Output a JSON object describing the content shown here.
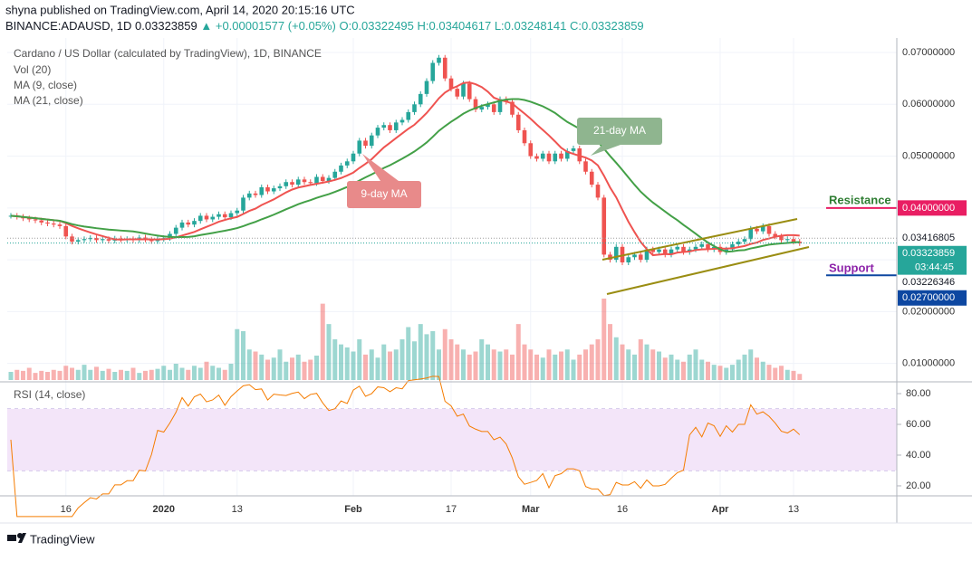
{
  "header": {
    "publisher": "shyna published on TradingView.com, April 14, 2020 20:15:16 UTC",
    "symbol": "BINANCE:ADAUSD, 1D",
    "last": "0.03323859",
    "change": "+0.00001577 (+0.05%)",
    "open": "O:0.03322495",
    "high": "H:0.03404617",
    "low": "L:0.03248141",
    "close": "C:0.03323859"
  },
  "footer": {
    "brand": "TradingView"
  },
  "chart_data": {
    "type": "candlestick",
    "title": "Cardano / US Dollar (calculated by TradingView), 1D, BINANCE",
    "categories": [
      null,
      null,
      null,
      null,
      null,
      null,
      null,
      null,
      null,
      "16",
      null,
      null,
      null,
      null,
      null,
      null,
      null,
      null,
      null,
      null,
      null,
      null,
      null,
      null,
      null,
      "2020",
      null,
      null,
      null,
      null,
      null,
      null,
      null,
      null,
      null,
      null,
      null,
      "13",
      null,
      null,
      null,
      null,
      null,
      null,
      null,
      null,
      null,
      null,
      null,
      null,
      null,
      null,
      null,
      null,
      null,
      null,
      "Feb",
      null,
      null,
      null,
      null,
      null,
      null,
      null,
      null,
      null,
      null,
      null,
      null,
      null,
      null,
      null,
      "17",
      null,
      null,
      null,
      null,
      null,
      null,
      null,
      null,
      null,
      null,
      null,
      null,
      "Mar",
      null,
      null,
      null,
      null,
      null,
      null,
      null,
      null,
      null,
      null,
      null,
      null,
      null,
      null,
      "16",
      null,
      null,
      null,
      null,
      null,
      null,
      null,
      null,
      null,
      null,
      null,
      null,
      null,
      null,
      null,
      "Apr",
      null,
      null,
      null,
      null,
      null,
      null,
      null,
      null,
      null,
      null,
      null,
      "13",
      null
    ],
    "close": [
      0.0385,
      0.0383,
      0.038,
      0.0378,
      0.0376,
      0.0372,
      0.037,
      0.0368,
      0.0365,
      0.0345,
      0.0335,
      0.0338,
      0.034,
      0.0342,
      0.0338,
      0.034,
      0.0337,
      0.0341,
      0.0339,
      0.034,
      0.0338,
      0.0343,
      0.0339,
      0.0336,
      0.034,
      0.0342,
      0.035,
      0.0362,
      0.0372,
      0.0368,
      0.0375,
      0.0385,
      0.0378,
      0.0383,
      0.0388,
      0.0382,
      0.039,
      0.0395,
      0.042,
      0.0428,
      0.0425,
      0.044,
      0.0432,
      0.0438,
      0.0442,
      0.045,
      0.0445,
      0.0455,
      0.045,
      0.0448,
      0.046,
      0.0452,
      0.0458,
      0.047,
      0.0482,
      0.049,
      0.0505,
      0.053,
      0.052,
      0.054,
      0.0555,
      0.056,
      0.055,
      0.0565,
      0.057,
      0.0585,
      0.06,
      0.062,
      0.0645,
      0.068,
      0.069,
      0.065,
      0.063,
      0.0615,
      0.064,
      0.061,
      0.059,
      0.0595,
      0.06,
      0.0585,
      0.061,
      0.0605,
      0.058,
      0.055,
      0.0525,
      0.05,
      0.0495,
      0.0505,
      0.049,
      0.0505,
      0.0495,
      0.051,
      0.0515,
      0.049,
      0.047,
      0.0445,
      0.042,
      0.031,
      0.03,
      0.0325,
      0.0295,
      0.0305,
      0.031,
      0.03,
      0.032,
      0.0315,
      0.032,
      0.031,
      0.032,
      0.0325,
      0.0315,
      0.032,
      0.0325,
      0.033,
      0.032,
      0.0325,
      0.0315,
      0.032,
      0.033,
      0.0335,
      0.034,
      0.036,
      0.0355,
      0.0365,
      0.035,
      0.0345,
      0.0338,
      0.034,
      0.0335,
      0.0332
    ],
    "up_color": "#26a69a",
    "down_color": "#ef5350",
    "ylim": [
      0.0068,
      0.0728
    ],
    "yticks": [
      {
        "value": 0.01,
        "label": "0.01000000"
      },
      {
        "value": 0.02,
        "label": "0.02000000"
      },
      {
        "value": 0.03,
        "label": "0.03000000"
      },
      {
        "value": 0.04,
        "label": "0.04000000"
      },
      {
        "value": 0.05,
        "label": "0.05000000"
      },
      {
        "value": 0.06,
        "label": "0.06000000"
      },
      {
        "value": 0.07,
        "label": "0.07000000"
      }
    ],
    "grid": true,
    "series": [
      {
        "name": "Vol (20)",
        "values": [
          8,
          10,
          9,
          12,
          7,
          9,
          8,
          10,
          9,
          14,
          12,
          10,
          15,
          10,
          13,
          9,
          11,
          8,
          10,
          9,
          12,
          7,
          9,
          10,
          11,
          14,
          10,
          16,
          12,
          10,
          14,
          12,
          18,
          14,
          12,
          10,
          16,
          50,
          48,
          30,
          28,
          25,
          20,
          22,
          30,
          18,
          22,
          25,
          18,
          20,
          24,
          75,
          55,
          40,
          35,
          32,
          28,
          40,
          25,
          30,
          22,
          35,
          28,
          30,
          40,
          52,
          38,
          55,
          45,
          48,
          30,
          50,
          40,
          35,
          30,
          25,
          28,
          40,
          35,
          30,
          28,
          30,
          25,
          55,
          35,
          30,
          25,
          22,
          30,
          25,
          28,
          30,
          20,
          25,
          30,
          35,
          40,
          80,
          55,
          42,
          35,
          30,
          25,
          40,
          35,
          30,
          28,
          22,
          25,
          20,
          18,
          25,
          30,
          20,
          18,
          15,
          14,
          12,
          15,
          20,
          25,
          30,
          22,
          18,
          15,
          12,
          14,
          10,
          9,
          6
        ]
      },
      {
        "name": "MA (9, close)",
        "color": "#ef5350",
        "period": 9
      },
      {
        "name": "MA (21, close)",
        "color": "#43a047",
        "period": 21
      }
    ],
    "price_labels": [
      {
        "value": 0.04,
        "label": "0.04000000",
        "color": "#e91e63",
        "text_color": "#ffffff"
      },
      {
        "value": 0.03416805,
        "label": "0.03416805",
        "color": "#ffffff",
        "text_color": "#131722",
        "dotted": "#9e9e9e"
      },
      {
        "value": 0.03323859,
        "label": "0.03323859",
        "countdown": "03:44:45",
        "color": "#26a69a",
        "text_color": "#ffffff",
        "dotted": "#26a69a"
      },
      {
        "value": 0.03226346,
        "label": "0.03226346",
        "color": "#ffffff",
        "text_color": "#131722"
      },
      {
        "value": 0.027,
        "label": "0.02700000",
        "color": "#0d47a1",
        "text_color": "#ffffff"
      }
    ],
    "annotations": {
      "ma9": "9-day MA",
      "ma21": "21-day MA",
      "resistance": "Resistance",
      "support": "Support"
    },
    "rsi": {
      "title": "RSI (14, close)",
      "period": 14,
      "color": "#f57c00",
      "ylim": [
        13.5,
        85.9
      ],
      "yticks": [
        {
          "value": 80,
          "label": "80.00"
        },
        {
          "value": 60,
          "label": "60.00"
        },
        {
          "value": 40,
          "label": "40.00"
        },
        {
          "value": 20,
          "label": "20.00"
        }
      ],
      "band": [
        30,
        70
      ]
    }
  }
}
